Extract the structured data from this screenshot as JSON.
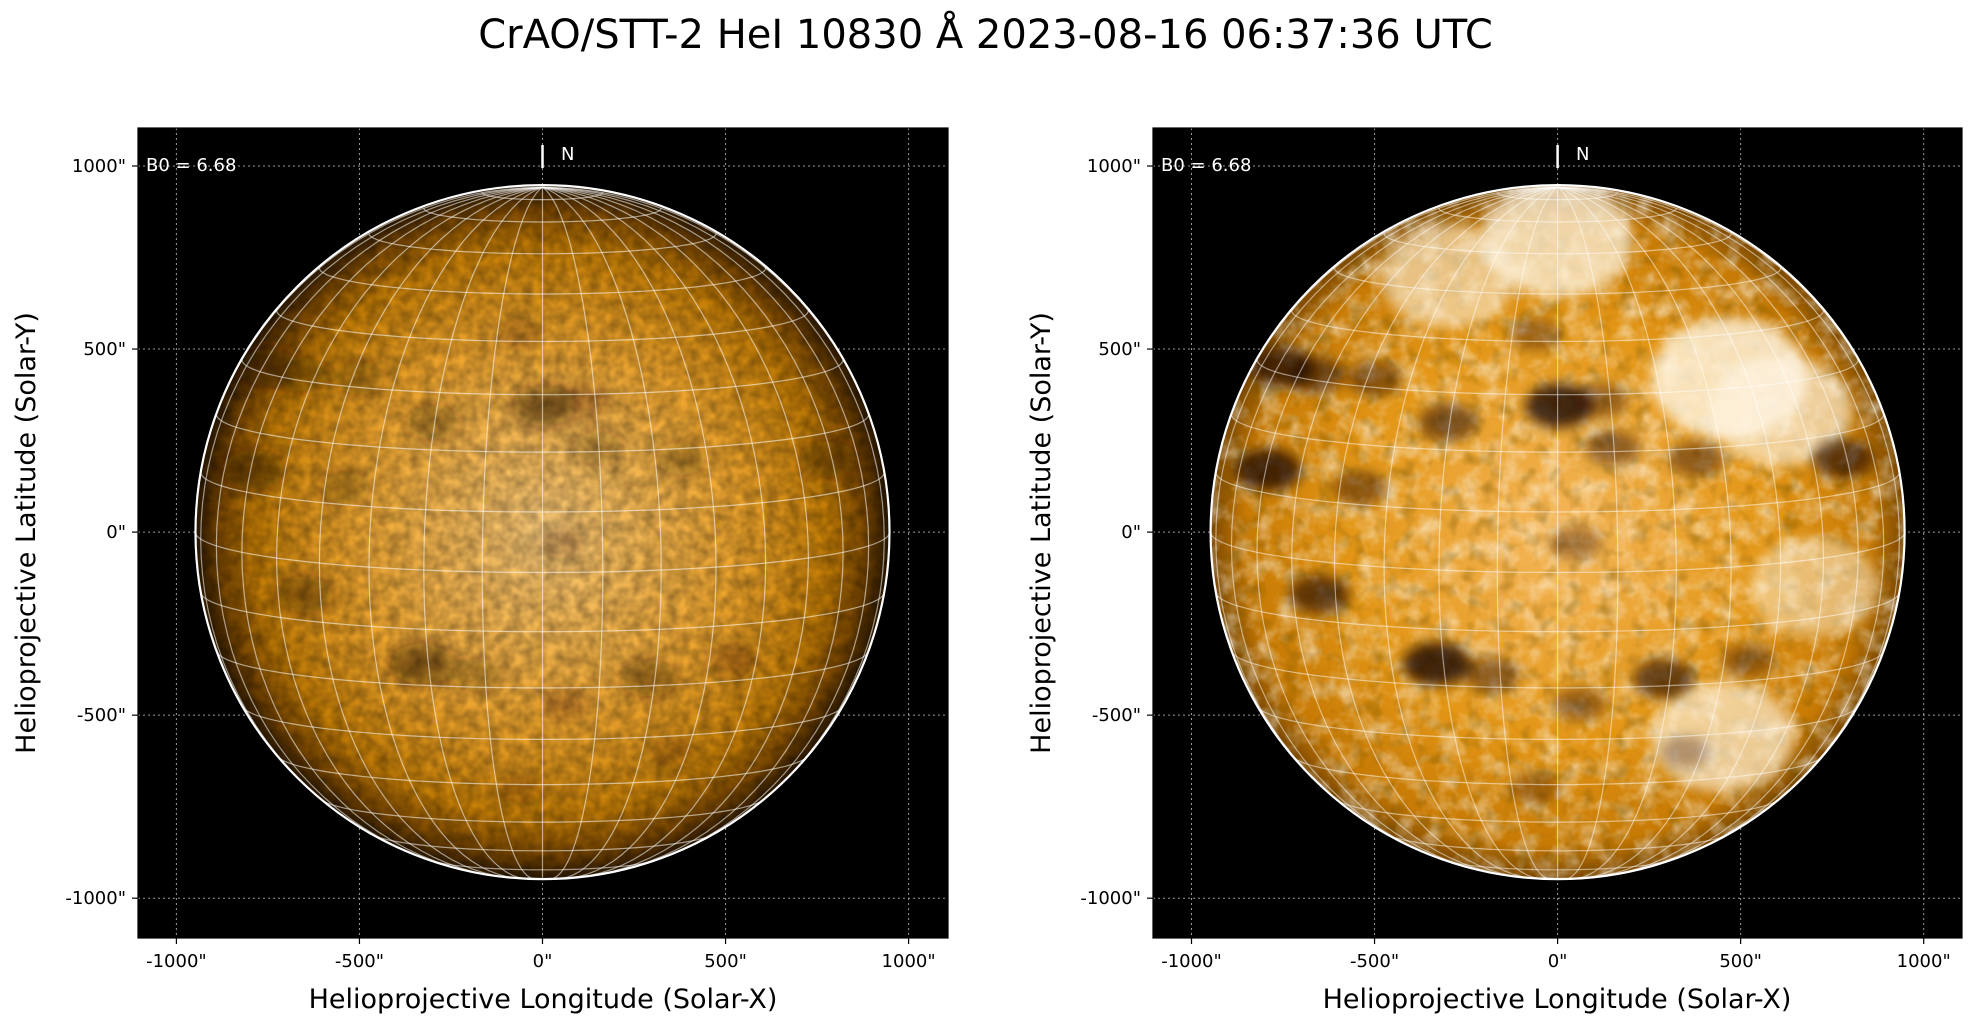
{
  "title": "CrAO/STT-2 HeI 10830 Å 2023-08-16 06:37:36 UTC",
  "colors": {
    "background": "#000000",
    "disk_center": "#f7c46d",
    "disk_mid": "#e0930c",
    "disk_limb": "#3a2000",
    "enhanced_bright": "#fff6e4",
    "grid_line": "#ffffff",
    "limb_circle": "#ffffff"
  },
  "panels": [
    {
      "id": "left",
      "style": "standard",
      "annotation": "B0 = 6.68",
      "north_label": "N",
      "x_axis": {
        "label": "Helioprojective Longitude (Solar-X)",
        "ticks": [
          {
            "value": -1000,
            "label": "-1000\""
          },
          {
            "value": -500,
            "label": "-500\""
          },
          {
            "value": 0,
            "label": "0\""
          },
          {
            "value": 500,
            "label": "500\""
          },
          {
            "value": 1000,
            "label": "1000\""
          }
        ]
      },
      "y_axis": {
        "label": "Helioprojective Latitude (Solar-Y)",
        "ticks": [
          {
            "value": 1000,
            "label": "1000\""
          },
          {
            "value": 500,
            "label": "500\""
          },
          {
            "value": 0,
            "label": "0\""
          },
          {
            "value": -500,
            "label": "-500\""
          },
          {
            "value": -1000,
            "label": "-1000\""
          }
        ]
      }
    },
    {
      "id": "right",
      "style": "enhanced",
      "annotation": "B0 = 6.68",
      "north_label": "N",
      "x_axis": {
        "label": "Helioprojective Longitude (Solar-X)",
        "ticks": [
          {
            "value": -1000,
            "label": "-1000\""
          },
          {
            "value": -500,
            "label": "-500\""
          },
          {
            "value": 0,
            "label": "0\""
          },
          {
            "value": 500,
            "label": "500\""
          },
          {
            "value": 1000,
            "label": "1000\""
          }
        ]
      },
      "y_axis": {
        "label": "Helioprojective Latitude (Solar-Y)",
        "ticks": [
          {
            "value": 1000,
            "label": "1000\""
          },
          {
            "value": 500,
            "label": "500\""
          },
          {
            "value": 0,
            "label": "0\""
          },
          {
            "value": -500,
            "label": "-500\""
          },
          {
            "value": -1000,
            "label": "-1000\""
          }
        ]
      }
    }
  ],
  "solar": {
    "radius_arcsec": 948,
    "b0_deg": 6.68
  },
  "features": [
    {
      "kind": "filament",
      "x": 5,
      "y": 345,
      "strength": 0.9
    },
    {
      "kind": "filament",
      "x": -300,
      "y": 300,
      "strength": 0.6
    },
    {
      "kind": "filament",
      "x": -750,
      "y": 450,
      "strength": 0.75
    },
    {
      "kind": "filament",
      "x": -790,
      "y": 170,
      "strength": 0.85
    },
    {
      "kind": "filament",
      "x": -660,
      "y": 430,
      "strength": 0.6
    },
    {
      "kind": "filament",
      "x": 780,
      "y": 200,
      "strength": 0.7
    },
    {
      "kind": "filament",
      "x": 150,
      "y": 230,
      "strength": 0.5
    },
    {
      "kind": "filament",
      "x": -540,
      "y": 120,
      "strength": 0.5
    },
    {
      "kind": "filament",
      "x": -650,
      "y": -170,
      "strength": 0.7
    },
    {
      "kind": "filament",
      "x": -330,
      "y": -360,
      "strength": 0.9
    },
    {
      "kind": "filament",
      "x": -180,
      "y": -390,
      "strength": 0.5
    },
    {
      "kind": "filament",
      "x": 290,
      "y": -400,
      "strength": 0.7
    },
    {
      "kind": "filament",
      "x": 520,
      "y": -350,
      "strength": 0.45
    },
    {
      "kind": "filament",
      "x": 60,
      "y": -470,
      "strength": 0.45
    },
    {
      "kind": "filament",
      "x": 50,
      "y": -30,
      "strength": 0.4
    },
    {
      "kind": "filament",
      "x": -60,
      "y": 540,
      "strength": 0.4
    },
    {
      "kind": "filament",
      "x": 380,
      "y": 200,
      "strength": 0.5
    },
    {
      "kind": "filament",
      "x": 120,
      "y": 360,
      "strength": 0.45
    },
    {
      "kind": "filament",
      "x": -500,
      "y": 420,
      "strength": 0.5
    },
    {
      "kind": "filament",
      "x": -60,
      "y": -700,
      "strength": 0.35
    },
    {
      "kind": "filament",
      "x": 350,
      "y": -600,
      "strength": 0.35
    }
  ],
  "bright_regions": [
    {
      "x": 470,
      "y": 420,
      "strength": 1.0
    },
    {
      "x": 610,
      "y": 330,
      "strength": 0.8
    },
    {
      "x": 0,
      "y": 800,
      "strength": 0.9
    },
    {
      "x": -300,
      "y": 700,
      "strength": 0.7
    },
    {
      "x": 450,
      "y": -560,
      "strength": 0.8
    },
    {
      "x": 700,
      "y": -150,
      "strength": 0.6
    }
  ]
}
